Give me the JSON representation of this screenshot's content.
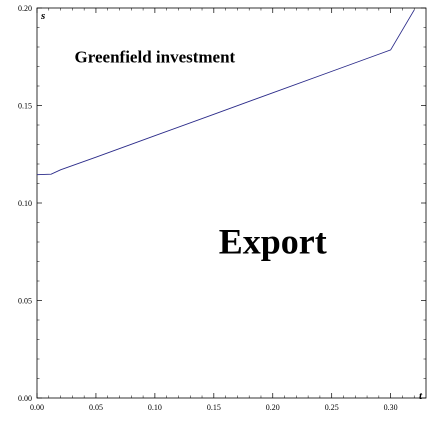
{
  "chart_data": {
    "type": "line",
    "xlabel": "t",
    "ylabel": "s",
    "xlim": [
      0.0,
      0.33
    ],
    "ylim": [
      0.0,
      0.2
    ],
    "x_ticks": [
      "0.00",
      "0.05",
      "0.10",
      "0.15",
      "0.20",
      "0.25",
      "0.30"
    ],
    "y_ticks": [
      "0.00",
      "0.05",
      "0.10",
      "0.15",
      "0.20"
    ],
    "series": [
      {
        "color": "#2c2c8a",
        "x": [
          0.0,
          0.012,
          0.02,
          0.05,
          0.1,
          0.15,
          0.2,
          0.25,
          0.3,
          0.32
        ],
        "y": [
          0.1145,
          0.1148,
          0.117,
          0.1235,
          0.1345,
          0.1455,
          0.1565,
          0.1675,
          0.1785,
          0.199
        ]
      }
    ],
    "annotations": [
      {
        "text": "Greenfield investment",
        "x": 0.1,
        "y": 0.172,
        "size": "small"
      },
      {
        "text": "Export",
        "x": 0.2,
        "y": 0.074,
        "size": "large"
      }
    ],
    "grid": false
  }
}
